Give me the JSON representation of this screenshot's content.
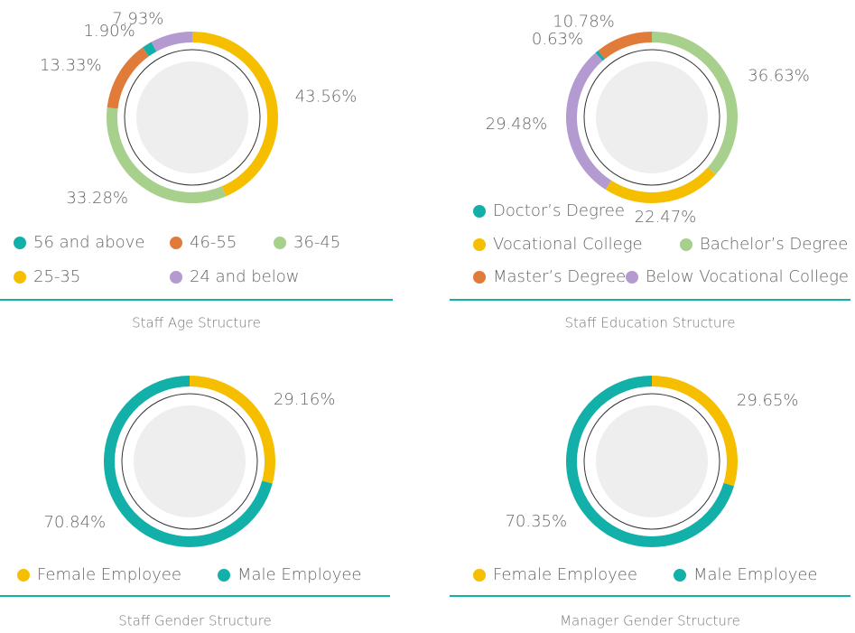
{
  "chart_data": [
    {
      "type": "pie",
      "title": "Staff Age Structure",
      "categories": [
        "25-35",
        "36-45",
        "46-55",
        "56 and above",
        "24 and below"
      ],
      "values": [
        43.56,
        33.28,
        13.33,
        1.9,
        7.93
      ],
      "value_labels": [
        "43.56%",
        "33.28%",
        "13.33%",
        "1.90%",
        "7.93%"
      ],
      "colors": [
        "#f5bf00",
        "#a8d08d",
        "#e07b39",
        "#12b0a8",
        "#b39ad0"
      ]
    },
    {
      "type": "pie",
      "title": "Staff Education Structure",
      "categories": [
        "Bachelor’s Degree",
        "Vocational College",
        "Below Vocational College",
        "Doctor’s Degree",
        "Master’s Degree"
      ],
      "values": [
        36.63,
        22.47,
        29.48,
        0.63,
        10.78
      ],
      "value_labels": [
        "36.63%",
        "22.47%",
        "29.48%",
        "0.63%",
        "10.78%"
      ],
      "colors": [
        "#a8d08d",
        "#f5bf00",
        "#b39ad0",
        "#12b0a8",
        "#e07b39"
      ]
    },
    {
      "type": "pie",
      "title": "Staff Gender Structure",
      "categories": [
        "Female Employee",
        "Male Employee"
      ],
      "values": [
        29.16,
        70.84
      ],
      "value_labels": [
        "29.16%",
        "70.84%"
      ],
      "colors": [
        "#f5bf00",
        "#12b0a8"
      ]
    },
    {
      "type": "pie",
      "title": "Manager Gender Structure",
      "categories": [
        "Female Employee",
        "Male Employee"
      ],
      "values": [
        29.65,
        70.35
      ],
      "value_labels": [
        "29.65%",
        "70.35%"
      ],
      "colors": [
        "#f5bf00",
        "#12b0a8"
      ]
    }
  ]
}
